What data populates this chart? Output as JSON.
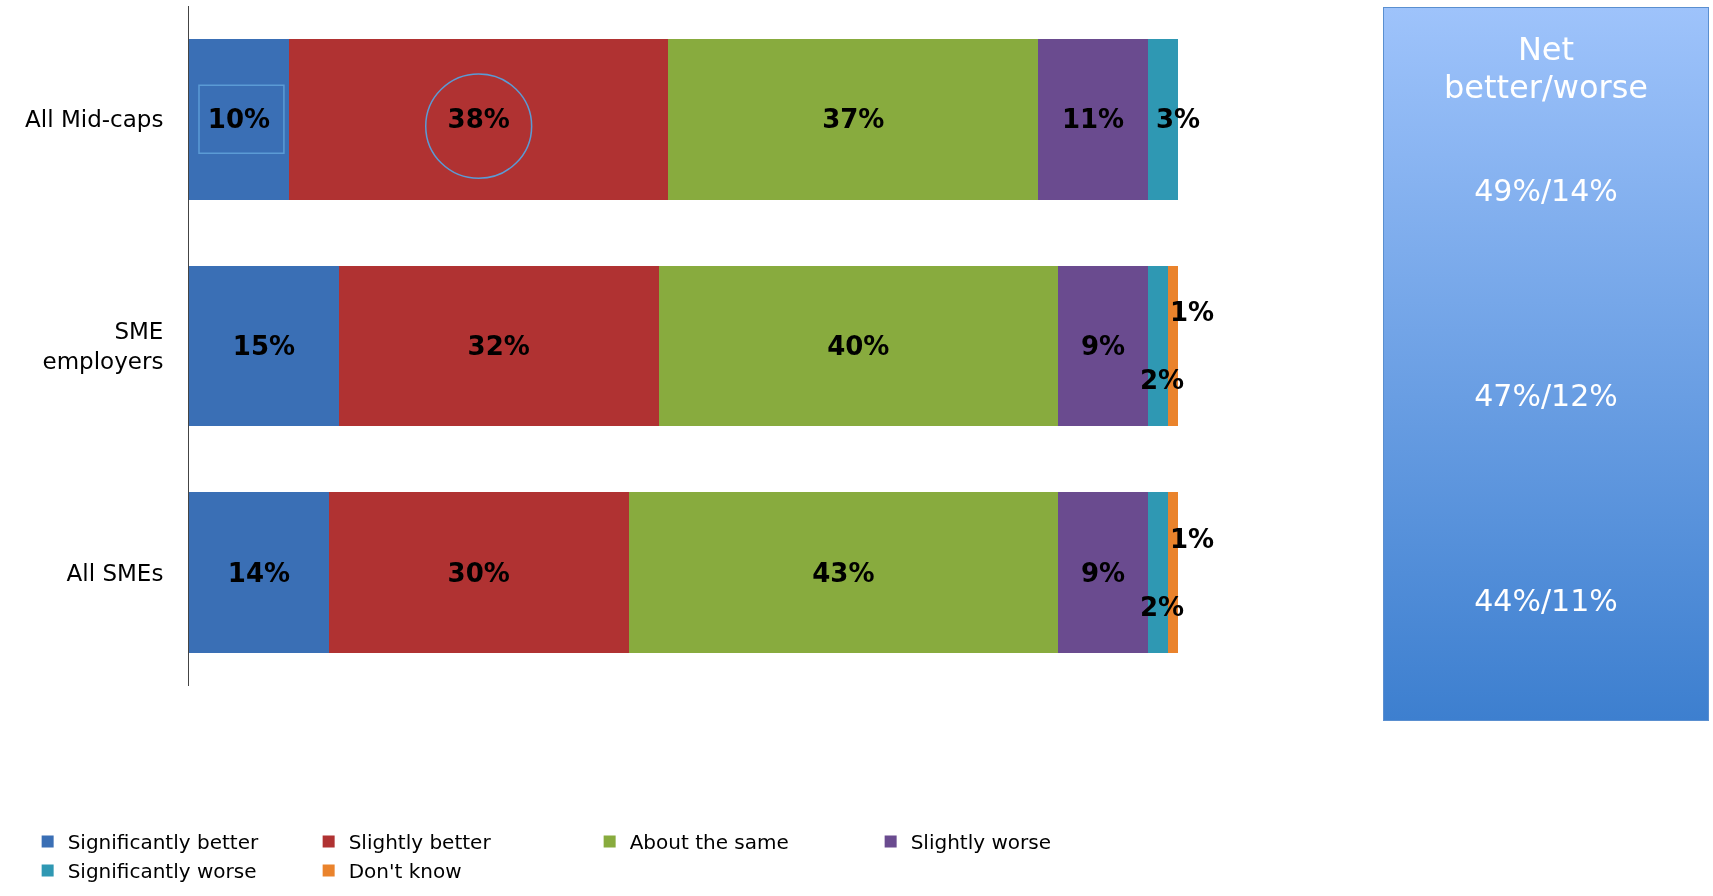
{
  "chart_data": {
    "type": "bar",
    "orientation": "horizontal",
    "stacked": true,
    "categories": [
      "All Mid-caps",
      "SME employers",
      "All SMEs"
    ],
    "series": [
      {
        "name": "Significantly better",
        "color": "#3a6fb5",
        "values": [
          10,
          15,
          14
        ],
        "value_labels": [
          "10%",
          "15%",
          "14%"
        ]
      },
      {
        "name": "Slightly better",
        "color": "#b03232",
        "values": [
          38,
          32,
          30
        ],
        "value_labels": [
          "38%",
          "32%",
          "30%"
        ]
      },
      {
        "name": "About the same",
        "color": "#88ab3e",
        "values": [
          37,
          40,
          43
        ],
        "value_labels": [
          "37%",
          "40%",
          "43%"
        ]
      },
      {
        "name": "Slightly worse",
        "color": "#6a4b8f",
        "values": [
          11,
          9,
          9
        ],
        "value_labels": [
          "11%",
          "9%",
          "9%"
        ]
      },
      {
        "name": "Significantly worse",
        "color": "#2f98b3",
        "values": [
          3,
          2,
          2
        ],
        "value_labels": [
          "3%",
          "2%",
          "2%"
        ]
      },
      {
        "name": "Don't know",
        "color": "#ea832c",
        "values": [
          null,
          1,
          1
        ],
        "value_labels": [
          null,
          "1%",
          "1%"
        ]
      }
    ],
    "tick_labels": "y",
    "grid": false,
    "legend": "bottom",
    "annotations": [
      "Net better/worse",
      "49%/14%",
      "47%/12%",
      "44%/11%"
    ]
  }
}
